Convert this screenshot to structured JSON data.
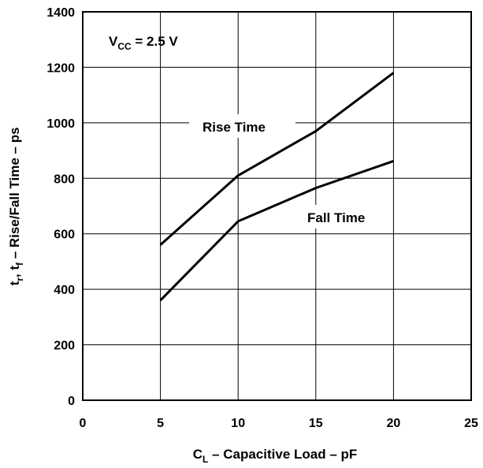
{
  "chart_data": {
    "type": "line",
    "x_ticks": [
      "0",
      "5",
      "10",
      "15",
      "20",
      "25"
    ],
    "y_ticks": [
      "0",
      "200",
      "400",
      "600",
      "800",
      "1000",
      "1200",
      "1400"
    ],
    "xlim": [
      0,
      25
    ],
    "ylim": [
      0,
      1400
    ],
    "grid": true,
    "xlabel": {
      "main": "C",
      "sub": "L",
      "rest": " – Capacitive Load – pF"
    },
    "ylabel": {
      "p1": "t",
      "s1": "r",
      "p2": ", t",
      "s2": "f",
      "rest": " – Rise/Fall Time – ps"
    },
    "annotation": {
      "main": "V",
      "sub": "CC",
      "rest": " = 2.5 V"
    },
    "series": [
      {
        "name": "Rise Time",
        "x": [
          5,
          10,
          15,
          20
        ],
        "y": [
          560,
          810,
          970,
          1180
        ]
      },
      {
        "name": "Fall Time",
        "x": [
          5,
          10,
          15,
          20
        ],
        "y": [
          360,
          645,
          765,
          862
        ]
      }
    ]
  }
}
